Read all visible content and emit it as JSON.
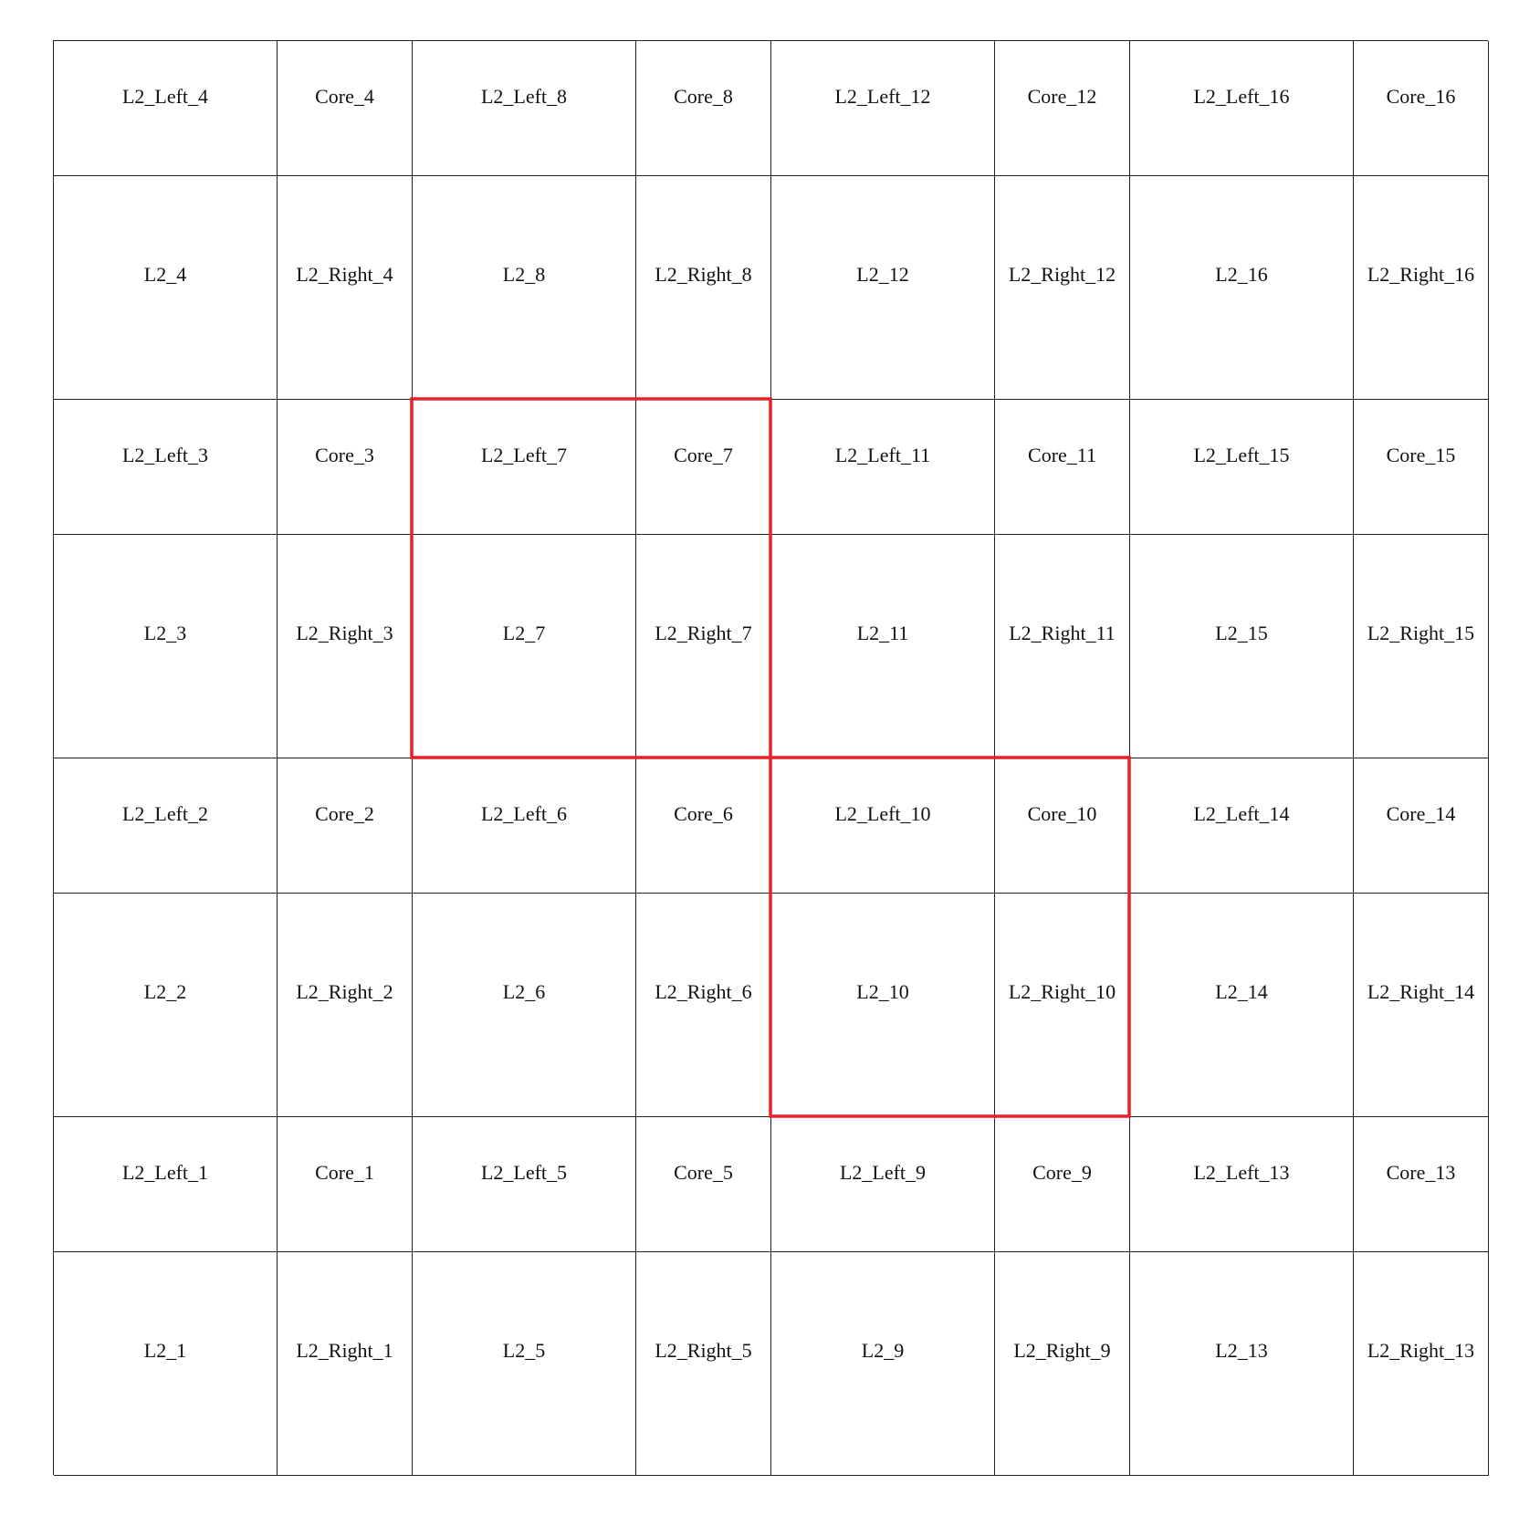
{
  "colors": {
    "grid_line": "#222222",
    "highlight": "#e8202a",
    "text": "#111111",
    "background": "#ffffff"
  },
  "rows": [
    [
      "L2_Left_4",
      "Core_4",
      "L2_Left_8",
      "Core_8",
      "L2_Left_12",
      "Core_12",
      "L2_Left_16",
      "Core_16"
    ],
    [
      "L2_4",
      "L2_Right_4",
      "L2_8",
      "L2_Right_8",
      "L2_12",
      "L2_Right_12",
      "L2_16",
      "L2_Right_16"
    ],
    [
      "L2_Left_3",
      "Core_3",
      "L2_Left_7",
      "Core_7",
      "L2_Left_11",
      "Core_11",
      "L2_Left_15",
      "Core_15"
    ],
    [
      "L2_3",
      "L2_Right_3",
      "L2_7",
      "L2_Right_7",
      "L2_11",
      "L2_Right_11",
      "L2_15",
      "L2_Right_15"
    ],
    [
      "L2_Left_2",
      "Core_2",
      "L2_Left_6",
      "Core_6",
      "L2_Left_10",
      "Core_10",
      "L2_Left_14",
      "Core_14"
    ],
    [
      "L2_2",
      "L2_Right_2",
      "L2_6",
      "L2_Right_6",
      "L2_10",
      "L2_Right_10",
      "L2_14",
      "L2_Right_14"
    ],
    [
      "L2_Left_1",
      "Core_1",
      "L2_Left_5",
      "Core_5",
      "L2_Left_9",
      "Core_9",
      "L2_Left_13",
      "Core_13"
    ],
    [
      "L2_1",
      "L2_Right_1",
      "L2_5",
      "L2_Right_5",
      "L2_9",
      "L2_Right_9",
      "L2_13",
      "L2_Right_13"
    ]
  ],
  "highlighted_tiles": [
    {
      "tile": 7,
      "cells": [
        "L2_Left_7",
        "Core_7",
        "L2_7",
        "L2_Right_7"
      ]
    },
    {
      "tile": 10,
      "cells": [
        "L2_Left_10",
        "Core_10",
        "L2_10",
        "L2_Right_10"
      ]
    }
  ]
}
